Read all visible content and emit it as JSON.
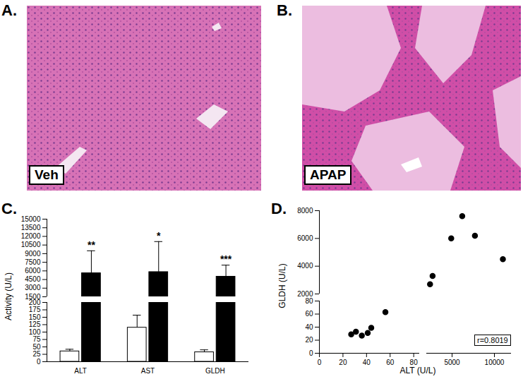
{
  "images": [
    {
      "panel": "A.",
      "label": "Veh"
    },
    {
      "panel": "B.",
      "label": "APAP"
    }
  ],
  "chart_data": [
    {
      "panel": "C.",
      "type": "bar",
      "ylabel": "Activity (U/L)",
      "categories": [
        "ALT",
        "AST",
        "GLDH"
      ],
      "y_segments": [
        {
          "ylim": [
            1500,
            15000
          ],
          "yticks": [
            1500,
            3000,
            4500,
            6000,
            7500,
            9000,
            10500,
            12000,
            13500,
            15000
          ]
        },
        {
          "ylim": [
            0,
            200
          ],
          "yticks": [
            0,
            25,
            50,
            75,
            100,
            125,
            150,
            175,
            200
          ]
        }
      ],
      "series": [
        {
          "color": "#ffffff",
          "values": [
            35,
            115,
            32
          ],
          "errors": [
            7,
            42,
            8
          ]
        },
        {
          "color": "#000000",
          "values": [
            5600,
            5800,
            5000
          ],
          "errors": [
            3900,
            5300,
            2000
          ],
          "significance": [
            "**",
            "*",
            "***"
          ]
        }
      ]
    },
    {
      "panel": "D.",
      "type": "scatter",
      "xlabel": "ALT (U/L)",
      "ylabel": "GLDH (U/L)",
      "x_segments": [
        {
          "xlim": [
            0,
            85
          ],
          "xticks": [
            0,
            20,
            40,
            60,
            80
          ]
        },
        {
          "xlim": [
            2000,
            12000
          ],
          "xticks": [
            5000,
            10000
          ]
        }
      ],
      "y_segments": [
        {
          "ylim": [
            2000,
            8000
          ],
          "yticks": [
            2000,
            4000,
            6000,
            8000
          ]
        },
        {
          "ylim": [
            0,
            80
          ],
          "yticks": [
            0,
            20,
            40,
            60,
            80
          ]
        }
      ],
      "x": [
        27,
        31,
        36,
        41,
        44,
        56,
        2400,
        2700,
        4900,
        6200,
        7700,
        11000
      ],
      "y": [
        29,
        33,
        27,
        31,
        39,
        63,
        2700,
        3300,
        6000,
        7600,
        6200,
        4500
      ],
      "color": "#000000",
      "marker": "circle",
      "annotation": "r=0.8019"
    }
  ]
}
